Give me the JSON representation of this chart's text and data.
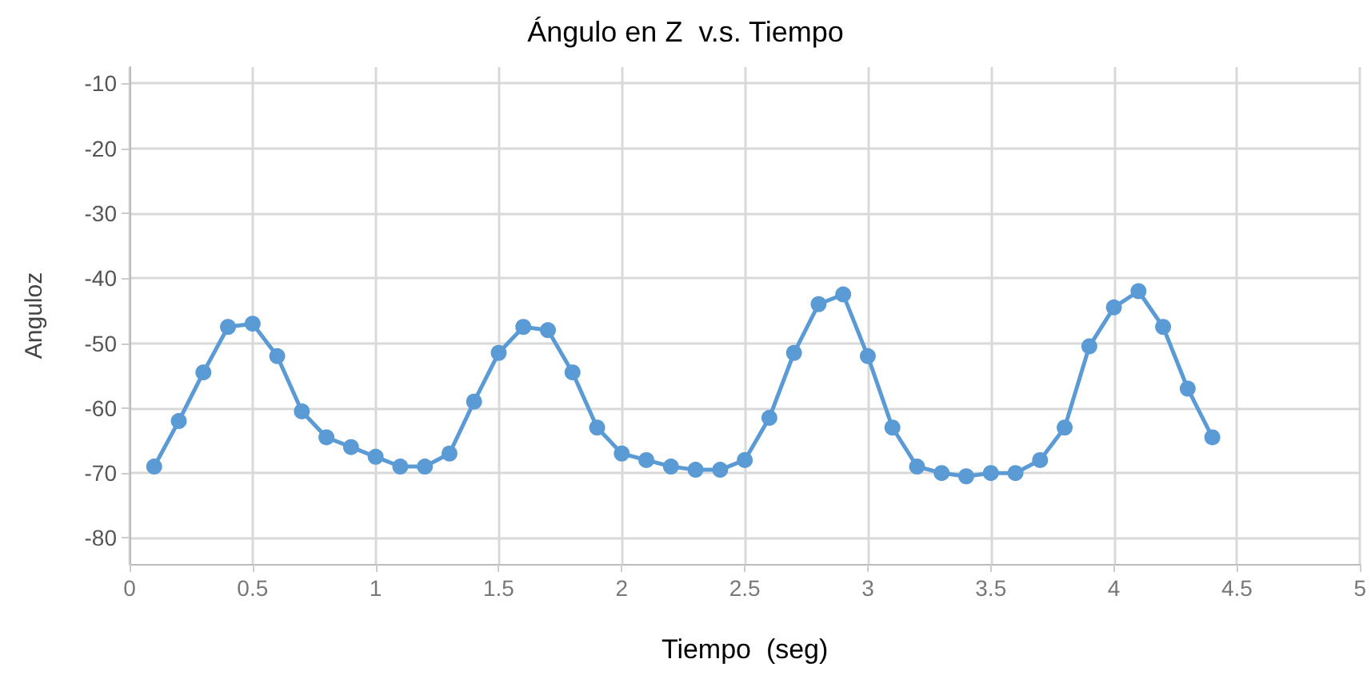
{
  "chart_data": {
    "type": "line",
    "title": "Ángulo en Z  v.s. Tiempo",
    "xlabel": "Tiempo  (seg)",
    "ylabel": "Anguloz",
    "x": [
      0.1,
      0.2,
      0.3,
      0.4,
      0.5,
      0.6,
      0.7,
      0.8,
      0.9,
      1.0,
      1.1,
      1.2,
      1.3,
      1.4,
      1.5,
      1.6,
      1.7,
      1.8,
      1.9,
      2.0,
      2.1,
      2.2,
      2.3,
      2.4,
      2.5,
      2.6,
      2.7,
      2.8,
      2.9,
      3.0,
      3.1,
      3.2,
      3.3,
      3.4,
      3.5,
      3.6,
      3.7,
      3.8,
      3.9,
      4.0,
      4.1,
      4.2,
      4.3,
      4.4
    ],
    "series": [
      {
        "color": "#5b9bd5",
        "values": [
          -69,
          -62,
          -54.5,
          -47.5,
          -47,
          -52,
          -60.5,
          -64.5,
          -66,
          -67.5,
          -69,
          -69,
          -67,
          -59,
          -51.5,
          -47.5,
          -48,
          -54.5,
          -63,
          -67,
          -68,
          -69,
          -69.5,
          -69.5,
          -68,
          -61.5,
          -51.5,
          -44,
          -42.5,
          -52,
          -63,
          -69,
          -70,
          -70.5,
          -70,
          -70,
          -68,
          -63,
          -50.5,
          -44.5,
          -42,
          -47.5,
          -57,
          -64.5
        ]
      }
    ],
    "xlim": [
      0,
      5
    ],
    "xticks": [
      0,
      0.5,
      1,
      1.5,
      2,
      2.5,
      3,
      3.5,
      4,
      4.5,
      5
    ],
    "ylim": [
      -84,
      -7.5
    ],
    "yticks": [
      -80,
      -70,
      -60,
      -50,
      -40,
      -30,
      -20,
      -10
    ],
    "grid": true,
    "legend": false,
    "marker": "circle",
    "line_style": "solid"
  }
}
